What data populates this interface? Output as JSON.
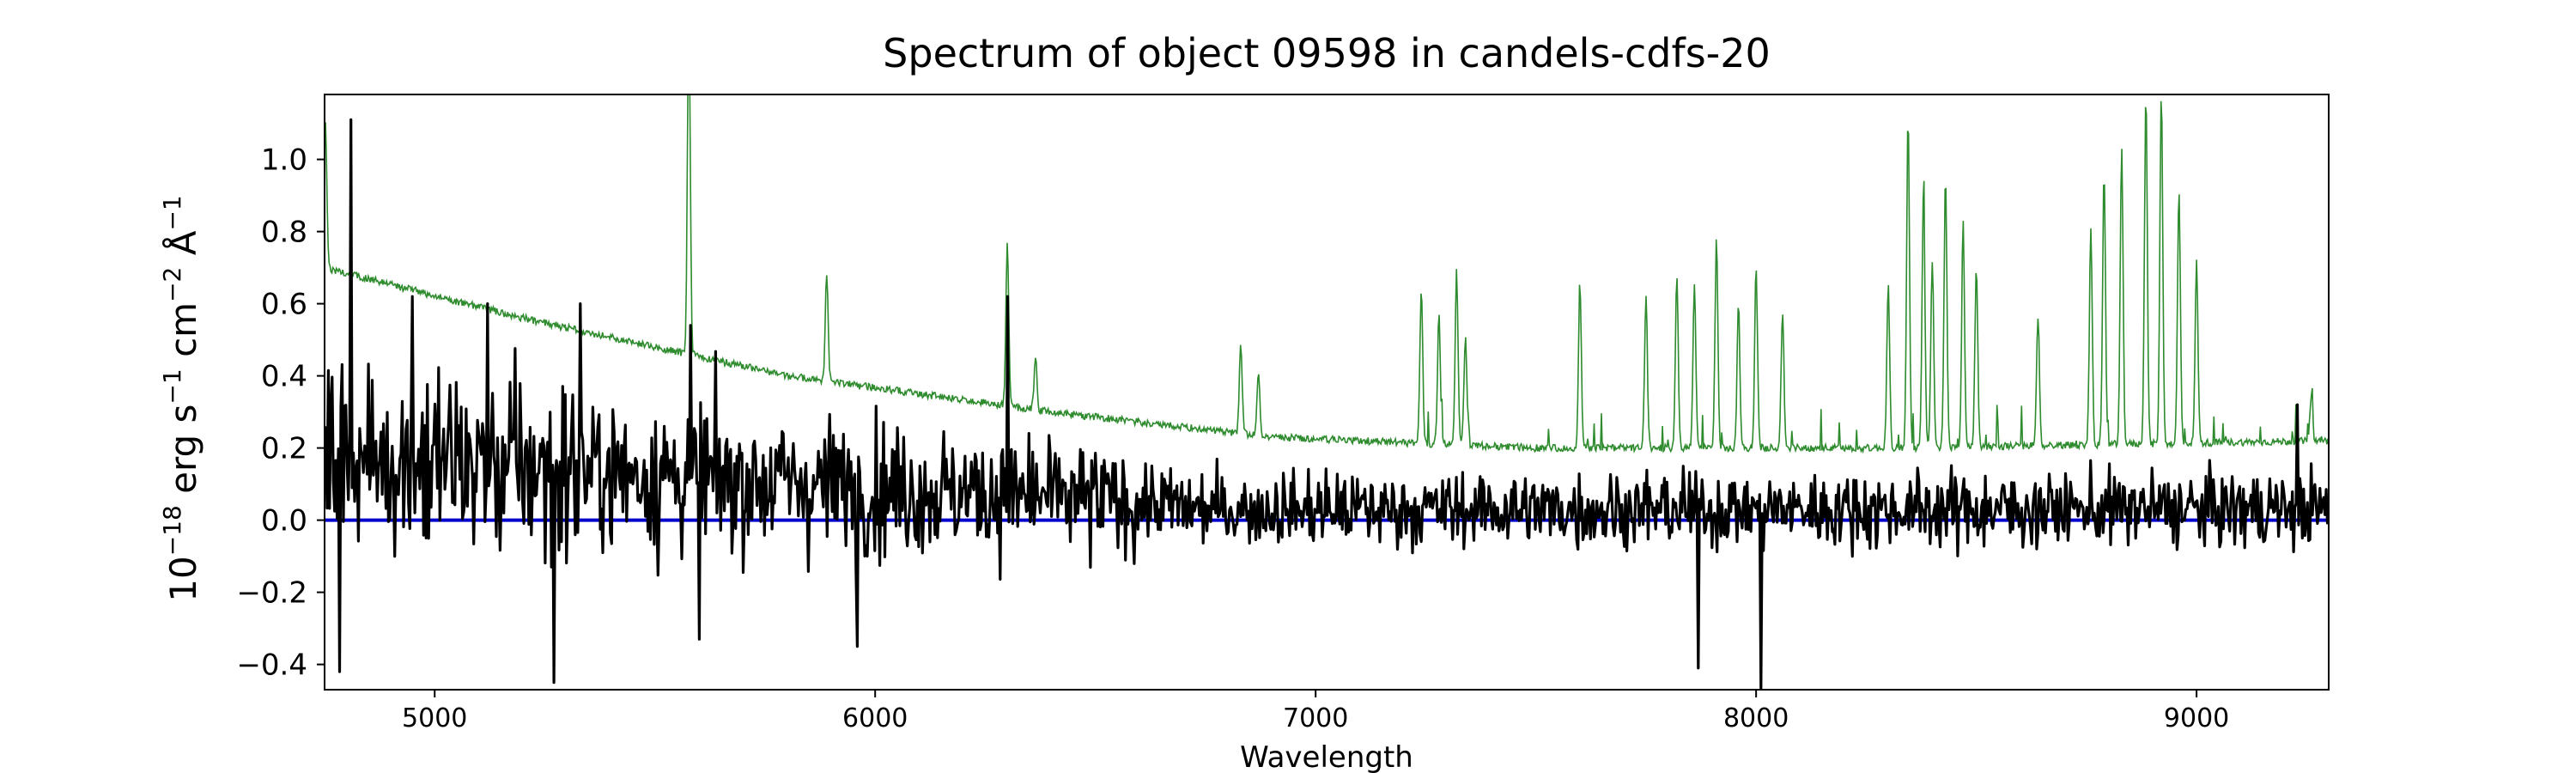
{
  "chart_data": {
    "type": "line",
    "title": "Spectrum of object 09598 in candels-cdfs-20",
    "xlabel": "Wavelength",
    "ylabel": {
      "prefix": "10",
      "exp1": "−18",
      "mid1": " erg s",
      "exp2": "−1",
      "mid2": " cm",
      "exp3": "−2",
      "mid3": " Å",
      "exp4": "−1"
    },
    "xlim": [
      4750,
      9300
    ],
    "ylim": [
      -0.47,
      1.18
    ],
    "xticks": [
      5000,
      6000,
      7000,
      8000,
      9000
    ],
    "xtick_labels": [
      "5000",
      "6000",
      "7000",
      "8000",
      "9000"
    ],
    "yticks": [
      -0.4,
      -0.2,
      0.0,
      0.2,
      0.4,
      0.6,
      0.8,
      1.0
    ],
    "ytick_labels": [
      "−0.4",
      "−0.2",
      "0.0",
      "0.2",
      "0.4",
      "0.6",
      "0.8",
      "1.0"
    ],
    "grid": false,
    "colors": {
      "spectrum": "#000000",
      "error": "#2e8b2e",
      "zero": "#0000cc"
    },
    "series": [
      {
        "kind": "noisy-spectrum",
        "color_key": "spectrum",
        "x_range": [
          4750,
          9300
        ],
        "points": 1600,
        "amplitude_blue": 0.28,
        "amplitude_red": 0.13,
        "blue_edge": 5300,
        "red_start": 6600,
        "spikes": [
          {
            "x": 4810,
            "y": 1.11
          },
          {
            "x": 4785,
            "y": -0.42
          },
          {
            "x": 4950,
            "y": 0.62
          },
          {
            "x": 5120,
            "y": 0.6
          },
          {
            "x": 5270,
            "y": -0.45
          },
          {
            "x": 5330,
            "y": 0.6
          },
          {
            "x": 5580,
            "y": 0.54
          },
          {
            "x": 5600,
            "y": -0.33
          },
          {
            "x": 5960,
            "y": -0.35
          },
          {
            "x": 6300,
            "y": 0.62
          },
          {
            "x": 8010,
            "y": -0.47
          },
          {
            "x": 7870,
            "y": -0.41
          },
          {
            "x": 9230,
            "y": 0.32
          }
        ]
      },
      {
        "kind": "error-spectrum",
        "color_key": "error",
        "x_range": [
          4750,
          9300
        ],
        "points": 2200,
        "continuum": [
          {
            "x": 4750,
            "y": 0.7
          },
          {
            "x": 5200,
            "y": 0.56
          },
          {
            "x": 5800,
            "y": 0.4
          },
          {
            "x": 6400,
            "y": 0.3
          },
          {
            "x": 6900,
            "y": 0.23
          },
          {
            "x": 7500,
            "y": 0.2
          },
          {
            "x": 8300,
            "y": 0.2
          },
          {
            "x": 9300,
            "y": 0.22
          }
        ],
        "emission_lines": [
          {
            "x": 4752,
            "h": 0.4
          },
          {
            "x": 5577,
            "h": 0.95
          },
          {
            "x": 5890,
            "h": 0.3
          },
          {
            "x": 6300,
            "h": 0.45
          },
          {
            "x": 6364,
            "h": 0.15
          },
          {
            "x": 6830,
            "h": 0.25
          },
          {
            "x": 6870,
            "h": 0.18
          },
          {
            "x": 7240,
            "h": 0.42
          },
          {
            "x": 7280,
            "h": 0.36
          },
          {
            "x": 7320,
            "h": 0.48
          },
          {
            "x": 7340,
            "h": 0.3
          },
          {
            "x": 7600,
            "h": 0.46
          },
          {
            "x": 7750,
            "h": 0.42
          },
          {
            "x": 7820,
            "h": 0.48
          },
          {
            "x": 7860,
            "h": 0.45
          },
          {
            "x": 7910,
            "h": 0.58
          },
          {
            "x": 7960,
            "h": 0.4
          },
          {
            "x": 8000,
            "h": 0.5
          },
          {
            "x": 8060,
            "h": 0.38
          },
          {
            "x": 8300,
            "h": 0.45
          },
          {
            "x": 8345,
            "h": 0.92
          },
          {
            "x": 8380,
            "h": 0.7
          },
          {
            "x": 8400,
            "h": 0.52
          },
          {
            "x": 8430,
            "h": 0.75
          },
          {
            "x": 8470,
            "h": 0.62
          },
          {
            "x": 8500,
            "h": 0.5
          },
          {
            "x": 8640,
            "h": 0.36
          },
          {
            "x": 8760,
            "h": 0.6
          },
          {
            "x": 8790,
            "h": 0.75
          },
          {
            "x": 8830,
            "h": 0.82
          },
          {
            "x": 8885,
            "h": 0.98
          },
          {
            "x": 8920,
            "h": 0.98
          },
          {
            "x": 8960,
            "h": 0.7
          },
          {
            "x": 9000,
            "h": 0.5
          },
          {
            "x": 9260,
            "h": 0.12
          }
        ]
      },
      {
        "kind": "zero-line",
        "color_key": "zero",
        "y": 0.0
      }
    ]
  }
}
